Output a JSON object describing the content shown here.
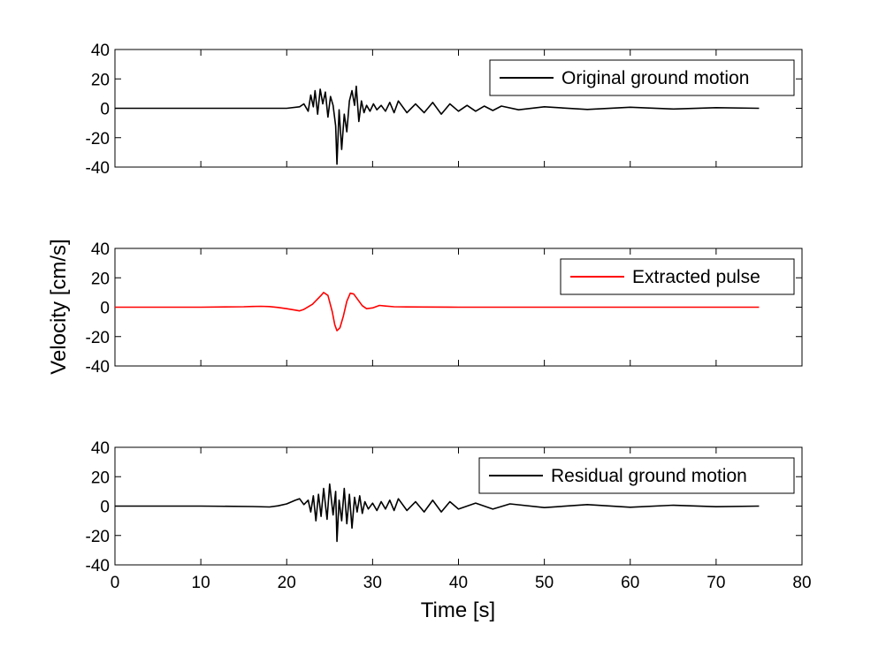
{
  "chart_data": {
    "type": "line",
    "xlabel": "Time [s]",
    "ylabel": "Velocity [cm/s]",
    "xlim": [
      0,
      80
    ],
    "ylim": [
      -40,
      40
    ],
    "x_ticks": [
      "0",
      "10",
      "20",
      "30",
      "40",
      "50",
      "60",
      "70",
      "80"
    ],
    "y_ticks": [
      "40",
      "20",
      "0",
      "-20",
      "-40"
    ],
    "grid": false,
    "legend_position": "top-right",
    "panels": [
      {
        "series": [
          {
            "name": "Original ground motion",
            "color": "#000000",
            "x": [
              0,
              10,
              20,
              21.5,
              22,
              22.5,
              22.8,
              23.1,
              23.3,
              23.6,
              23.9,
              24.2,
              24.5,
              24.8,
              25.1,
              25.4,
              25.7,
              25.85,
              26.1,
              26.4,
              26.7,
              27.0,
              27.3,
              27.6,
              27.9,
              28.1,
              28.4,
              28.7,
              29.0,
              29.3,
              29.7,
              30.1,
              30.5,
              31.0,
              31.5,
              32.0,
              32.5,
              33.0,
              34.0,
              35.0,
              36.0,
              37.0,
              38.0,
              39.0,
              40.0,
              41.0,
              42.0,
              43.0,
              44.0,
              45.0,
              47.0,
              50.0,
              55.0,
              60.0,
              65.0,
              70.0,
              75.0
            ],
            "y": [
              0,
              0,
              0,
              1,
              3,
              -2,
              9,
              1,
              12,
              -4,
              13,
              3,
              11,
              -6,
              8,
              2,
              -12,
              -38,
              -1,
              -28,
              -4,
              -16,
              5,
              12,
              2,
              15,
              -9,
              5,
              -3,
              2,
              -2,
              3,
              -1,
              2,
              -2,
              4,
              -3,
              5,
              -3,
              3,
              -3,
              4,
              -4,
              3,
              -2,
              2,
              -2,
              1.5,
              -1.5,
              1.5,
              -1,
              1,
              -0.8,
              0.7,
              -0.5,
              0.4,
              0
            ]
          }
        ]
      },
      {
        "series": [
          {
            "name": "Extracted pulse",
            "color": "#ff0000",
            "x": [
              0,
              10,
              15,
              16,
              17,
              18,
              19,
              20,
              21,
              21.5,
              22,
              23,
              24,
              24.3,
              24.8,
              25.3,
              25.6,
              25.85,
              26.2,
              26.6,
              27.0,
              27.4,
              27.8,
              28.3,
              28.8,
              29.3,
              30.0,
              30.8,
              31.5,
              32.5,
              34.0,
              36.0,
              40.0,
              50.0,
              60.0,
              70.0,
              75.0
            ],
            "y": [
              0,
              0,
              0.3,
              0.5,
              0.6,
              0.4,
              -0.2,
              -1,
              -2,
              -2.5,
              -1.5,
              2,
              8,
              10,
              8,
              -3,
              -12,
              -16,
              -14,
              -6,
              4,
              9.5,
              9,
              5,
              1,
              -1,
              -0.5,
              1.2,
              0.8,
              0.3,
              0.2,
              0.1,
              0,
              0,
              0,
              0,
              0
            ]
          }
        ]
      },
      {
        "series": [
          {
            "name": "Residual ground motion",
            "color": "#000000",
            "x": [
              0,
              10,
              16,
              18,
              19,
              20,
              21,
              21.5,
              22,
              22.5,
              22.8,
              23.1,
              23.4,
              23.7,
              24.0,
              24.3,
              24.7,
              25.0,
              25.4,
              25.7,
              25.85,
              26.1,
              26.4,
              26.7,
              27.0,
              27.3,
              27.6,
              27.9,
              28.2,
              28.5,
              28.8,
              29.1,
              29.5,
              30.0,
              30.5,
              31.0,
              31.5,
              32.0,
              32.5,
              33.0,
              34.0,
              35.0,
              36.0,
              37.0,
              38.0,
              39.0,
              40.0,
              42.0,
              44.0,
              46.0,
              50.0,
              55.0,
              60.0,
              65.0,
              70.0,
              75.0
            ],
            "y": [
              0,
              0,
              -0.3,
              -0.6,
              0.2,
              1.5,
              4,
              5,
              1,
              4,
              -4,
              7,
              -10,
              8,
              -7,
              12,
              -9,
              15,
              -6,
              10,
              -24,
              4,
              -10,
              12,
              -12,
              8,
              -15,
              6,
              -4,
              7,
              -5,
              3,
              -2,
              2,
              -3,
              3,
              -2,
              4,
              -3,
              5,
              -3,
              3,
              -4,
              4,
              -4,
              3,
              -2,
              2,
              -2,
              1.5,
              -1,
              1,
              -0.8,
              0.6,
              -0.4,
              0
            ]
          }
        ]
      }
    ]
  }
}
